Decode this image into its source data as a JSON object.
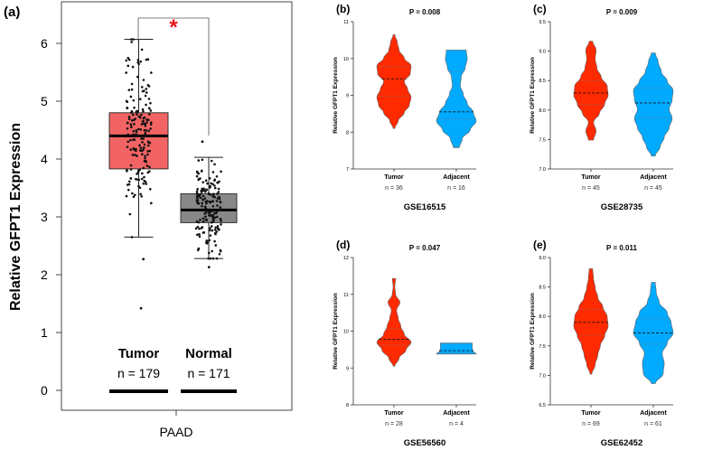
{
  "chart_data": [
    {
      "panel": "(a)",
      "type": "box",
      "ylabel": "Relative GFPT1 Expression",
      "xlabel": "PAAD",
      "ylim": [
        0,
        6
      ],
      "yticks": [
        "0",
        "1",
        "2",
        "3",
        "4",
        "5",
        "6"
      ],
      "significance": "*",
      "colors": {
        "Tumor": "#f26464",
        "Normal": "#888888"
      },
      "groups": [
        {
          "name": "Tumor",
          "n_label": "n = 179",
          "n": 179,
          "min": 2.65,
          "q1": 3.83,
          "median": 4.4,
          "q3": 4.8,
          "max": 6.07,
          "outliers": [
            2.27,
            1.42
          ]
        },
        {
          "name": "Normal",
          "n_label": "n = 171",
          "n": 171,
          "min": 2.28,
          "q1": 2.9,
          "median": 3.12,
          "q3": 3.4,
          "max": 4.03,
          "outliers": [
            4.3,
            2.13
          ]
        }
      ]
    },
    {
      "panel": "(b)",
      "type": "violin",
      "title": "P = 0.008",
      "dataset": "GSE16515",
      "ylabel": "Relative GFPT1 Expression",
      "ylim": [
        7,
        11
      ],
      "yticks": [
        "7",
        "8",
        "9",
        "10",
        "11"
      ],
      "groups": [
        {
          "name": "Tumor",
          "n_label": "n = 36",
          "min": 8.1,
          "q1": 8.97,
          "median": 9.45,
          "q3": 9.78,
          "max": 10.65,
          "color": "#ff2a00",
          "density": [
            0.05,
            0.25,
            0.6,
            0.9,
            1.0,
            0.8,
            0.6,
            0.95,
            1.0,
            0.6,
            0.3,
            0.2,
            0.05
          ]
        },
        {
          "name": "Adjacent",
          "n_label": "n = 16",
          "min": 7.58,
          "q1": 8.35,
          "median": 8.55,
          "q3": 9.65,
          "max": 10.23,
          "color": "#00aaff",
          "density": [
            0.15,
            0.3,
            0.7,
            1.0,
            0.85,
            0.55,
            0.35,
            0.2,
            0.25,
            0.45,
            0.55,
            0.5
          ]
        }
      ]
    },
    {
      "panel": "(c)",
      "type": "violin",
      "title": "P = 0.009",
      "dataset": "GSE28735",
      "ylabel": "Relative GFPT1 Expression",
      "ylim": [
        7.0,
        9.5
      ],
      "yticks": [
        "7.0",
        "7.5",
        "8.0",
        "8.5",
        "9.0",
        "9.5"
      ],
      "groups": [
        {
          "name": "Tumor",
          "n_label": "n = 45",
          "min": 7.49,
          "q1": 8.1,
          "median": 8.29,
          "q3": 8.5,
          "max": 9.17,
          "color": "#ff2a00",
          "density": [
            0.15,
            0.3,
            0.15,
            0.5,
            0.8,
            1.0,
            0.95,
            0.6,
            0.35,
            0.25,
            0.3,
            0.1
          ]
        },
        {
          "name": "Adjacent",
          "n_label": "n = 45",
          "min": 7.22,
          "q1": 7.87,
          "median": 8.12,
          "q3": 8.37,
          "max": 8.97,
          "color": "#00aaff",
          "density": [
            0.1,
            0.35,
            0.55,
            0.8,
            0.95,
            0.8,
            0.95,
            1.0,
            0.7,
            0.4,
            0.25,
            0.1
          ]
        }
      ]
    },
    {
      "panel": "(d)",
      "type": "violin",
      "title": "P = 0.047",
      "dataset": "GSE56560",
      "ylabel": "Relative GFPT1 Expression",
      "ylim": [
        8,
        12
      ],
      "yticks": [
        "8",
        "9",
        "10",
        "11",
        "12"
      ],
      "groups": [
        {
          "name": "Tumor",
          "n_label": "n = 28",
          "min": 9.05,
          "q1": 9.62,
          "median": 9.78,
          "q3": 10.08,
          "max": 11.43,
          "color": "#ff2a00",
          "density": [
            0.05,
            0.3,
            0.7,
            1.0,
            0.6,
            0.4,
            0.25,
            0.15,
            0.35,
            0.1,
            0.05,
            0.1
          ]
        },
        {
          "name": "Adjacent",
          "n_label": "n = 4",
          "min": 9.38,
          "q1": 9.4,
          "median": 9.47,
          "q3": 9.65,
          "max": 9.68,
          "color": "#00aaff",
          "density": [
            1.0,
            0.85,
            0.8,
            0.8,
            0.8
          ]
        }
      ]
    },
    {
      "panel": "(e)",
      "type": "violin",
      "title": "P = 0.011",
      "dataset": "GSE62452",
      "ylabel": "Relative GFPT1 Expression",
      "ylim": [
        6.5,
        9.0
      ],
      "yticks": [
        "6.5",
        "7.0",
        "7.5",
        "8.0",
        "8.5",
        "9.0"
      ],
      "groups": [
        {
          "name": "Tumor",
          "n_label": "n = 69",
          "min": 7.02,
          "q1": 7.68,
          "median": 7.9,
          "q3": 8.12,
          "max": 8.81,
          "color": "#ff2a00",
          "density": [
            0.05,
            0.25,
            0.4,
            0.55,
            0.8,
            1.0,
            0.95,
            0.7,
            0.4,
            0.25,
            0.15,
            0.1
          ]
        },
        {
          "name": "Adjacent",
          "n_label": "n = 61",
          "min": 6.86,
          "q1": 7.53,
          "median": 7.72,
          "q3": 7.97,
          "max": 8.58,
          "color": "#00aaff",
          "density": [
            0.1,
            0.5,
            0.55,
            0.45,
            0.7,
            1.0,
            0.9,
            0.7,
            0.3,
            0.15,
            0.1
          ]
        }
      ]
    }
  ]
}
